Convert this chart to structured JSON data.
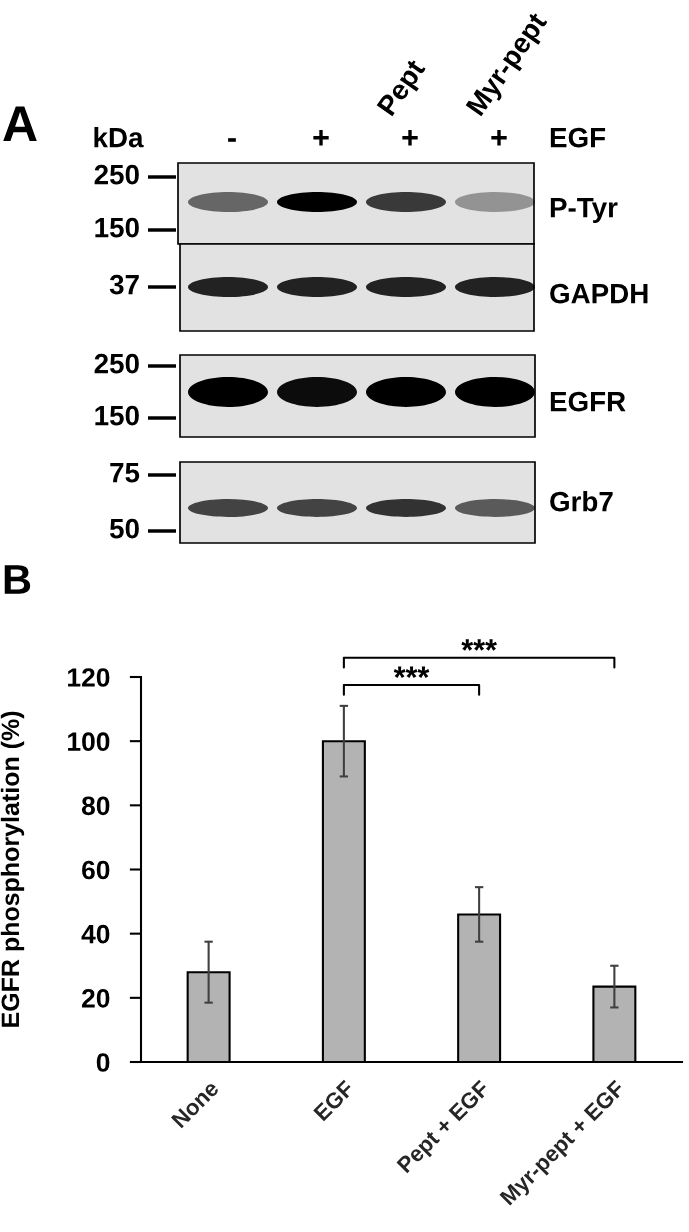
{
  "chart_data": [
    {
      "type": "other",
      "title": "A",
      "categories": [
        "-",
        "+",
        "+",
        "+"
      ],
      "xlabel": "EGF",
      "ylabel": "kDa",
      "y2_categories": [
        "P-Tyr",
        "GAPDH",
        "EGFR",
        "Grb7"
      ],
      "annotations": [
        "Pept",
        "Myr-pept",
        "250",
        "150",
        "37",
        "250",
        "150",
        "75",
        "50"
      ]
    },
    {
      "type": "bar",
      "title": "B",
      "ylabel": "EGFR phosphorylation (%)",
      "categories": [
        "None",
        "EGF",
        "Pept + EGF",
        "Myr-pept + EGF"
      ],
      "values": [
        28,
        100,
        46,
        23.5
      ],
      "errors": [
        9.5,
        11,
        8.5,
        6.5
      ],
      "color": "#b3b3b3",
      "ylim": [
        0,
        120
      ],
      "yticks": [
        0,
        20,
        40,
        60,
        80,
        100,
        120
      ],
      "annotations": [
        "***",
        "***"
      ]
    }
  ]
}
